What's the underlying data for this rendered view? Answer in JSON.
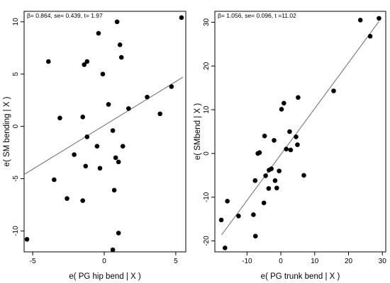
{
  "chart_data": [
    {
      "type": "scatter",
      "annotation": "β= 0.864, se= 0.439, t= 1.97",
      "xlabel": "e( PG hip bend | X )",
      "ylabel": "e( SM bending | X )",
      "xlim": [
        -5.6,
        5.7
      ],
      "ylim": [
        -12.0,
        11.0
      ],
      "xticks": [
        -5,
        0,
        5
      ],
      "yticks": [
        -10,
        -5,
        0,
        5,
        10
      ],
      "fit_line": {
        "x": [
          -5.6,
          5.5
        ],
        "y": [
          -4.6,
          4.7
        ]
      },
      "points": [
        {
          "x": -5.4,
          "y": -10.8
        },
        {
          "x": -3.9,
          "y": 6.2
        },
        {
          "x": -3.5,
          "y": -5.1
        },
        {
          "x": -3.1,
          "y": 0.8
        },
        {
          "x": -2.6,
          "y": -6.9
        },
        {
          "x": -2.1,
          "y": -2.7
        },
        {
          "x": -1.5,
          "y": 0.9
        },
        {
          "x": -1.5,
          "y": -7.1
        },
        {
          "x": -1.4,
          "y": 5.9
        },
        {
          "x": -1.3,
          "y": -3.8
        },
        {
          "x": -1.2,
          "y": 6.2
        },
        {
          "x": -1.2,
          "y": -1.0
        },
        {
          "x": -0.5,
          "y": -1.9
        },
        {
          "x": -0.4,
          "y": 8.9
        },
        {
          "x": -0.3,
          "y": -4.0
        },
        {
          "x": -0.1,
          "y": 5.0
        },
        {
          "x": 0.3,
          "y": 2.1
        },
        {
          "x": 0.6,
          "y": -0.4
        },
        {
          "x": 0.6,
          "y": -11.8
        },
        {
          "x": 0.7,
          "y": -6.1
        },
        {
          "x": 0.8,
          "y": -3.0
        },
        {
          "x": 0.9,
          "y": 10.0
        },
        {
          "x": 1.0,
          "y": -10.2
        },
        {
          "x": 1.0,
          "y": -3.4
        },
        {
          "x": 1.1,
          "y": 7.8
        },
        {
          "x": 1.2,
          "y": 6.6
        },
        {
          "x": 1.3,
          "y": -1.9
        },
        {
          "x": 1.7,
          "y": 1.7
        },
        {
          "x": 3.0,
          "y": 2.8
        },
        {
          "x": 3.9,
          "y": 1.2
        },
        {
          "x": 4.7,
          "y": 3.8
        },
        {
          "x": 5.4,
          "y": 10.4
        }
      ]
    },
    {
      "type": "scatter",
      "annotation": "β= 1.056, se= 0.096, t =11.02",
      "xlabel": "e( PG trunk bend | X )",
      "ylabel": "e( SMbend | X )",
      "xlim": [
        -19.5,
        31.0
      ],
      "ylim": [
        -22.5,
        32.5
      ],
      "xticks": [
        -10,
        0,
        10,
        20,
        30
      ],
      "yticks": [
        -20,
        -10,
        0,
        10,
        20,
        30
      ],
      "fit_line": {
        "x": [
          -17.5,
          29.0
        ],
        "y": [
          -18.6,
          30.2
        ]
      },
      "points": [
        {
          "x": -17.6,
          "y": -15.2
        },
        {
          "x": -16.5,
          "y": -21.6
        },
        {
          "x": -15.8,
          "y": -10.9
        },
        {
          "x": -12.5,
          "y": -14.3
        },
        {
          "x": -8.1,
          "y": -14.0
        },
        {
          "x": -7.5,
          "y": -18.9
        },
        {
          "x": -7.6,
          "y": -6.2
        },
        {
          "x": -6.8,
          "y": 0.0
        },
        {
          "x": -6.3,
          "y": 0.2
        },
        {
          "x": -5.0,
          "y": -11.3
        },
        {
          "x": -4.8,
          "y": 4.0
        },
        {
          "x": -4.5,
          "y": -5.1
        },
        {
          "x": -3.6,
          "y": -8.0
        },
        {
          "x": -3.5,
          "y": -3.8
        },
        {
          "x": -2.8,
          "y": -3.5
        },
        {
          "x": -2.0,
          "y": 3.0
        },
        {
          "x": -1.7,
          "y": -6.2
        },
        {
          "x": -1.2,
          "y": -7.9
        },
        {
          "x": -0.5,
          "y": -4.0
        },
        {
          "x": 0.2,
          "y": 10.1
        },
        {
          "x": 0.9,
          "y": 11.5
        },
        {
          "x": 1.6,
          "y": 1.0
        },
        {
          "x": 2.6,
          "y": 5.0
        },
        {
          "x": 2.9,
          "y": 0.8
        },
        {
          "x": 4.5,
          "y": 3.8
        },
        {
          "x": 4.9,
          "y": 2.0
        },
        {
          "x": 5.1,
          "y": 12.8
        },
        {
          "x": 6.8,
          "y": -5.0
        },
        {
          "x": 15.6,
          "y": 14.3
        },
        {
          "x": 23.5,
          "y": 30.5
        },
        {
          "x": 26.4,
          "y": 26.8
        },
        {
          "x": 29.0,
          "y": 30.9
        }
      ]
    }
  ]
}
